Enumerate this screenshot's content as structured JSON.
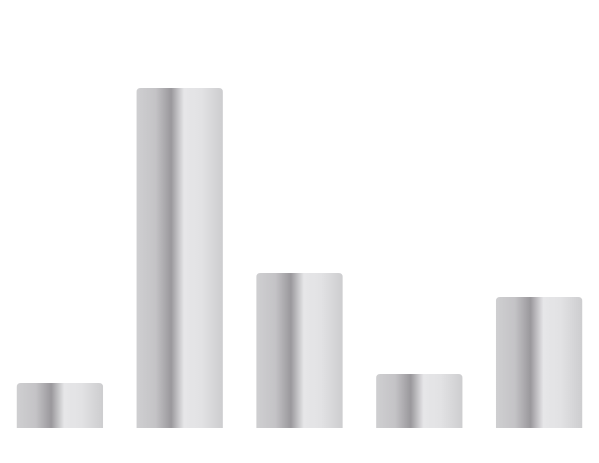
{
  "chart_data": {
    "type": "bar",
    "categories": [
      null,
      null,
      null,
      null,
      null
    ],
    "values": [
      45,
      340,
      155,
      54,
      131
    ],
    "ylim": [
      0,
      428
    ]
  }
}
